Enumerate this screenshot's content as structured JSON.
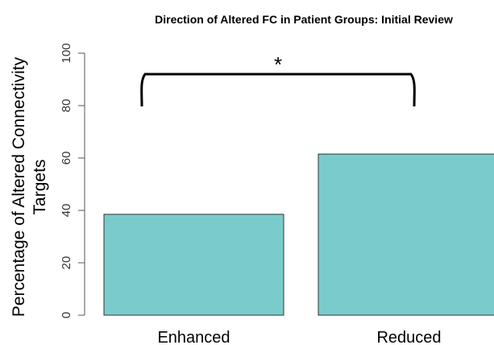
{
  "chart_data": {
    "type": "bar",
    "title": "Direction of Altered FC in Patient Groups: Initial Review",
    "ylabel_lines": [
      "Percentage of Altered Connectivity",
      "Targets"
    ],
    "xlabel": "",
    "categories": [
      "Enhanced",
      "Reduced"
    ],
    "values": [
      38.5,
      61.5
    ],
    "ylim": [
      0,
      100
    ],
    "yticks": [
      0,
      20,
      40,
      60,
      80,
      100
    ],
    "bar_color": "#7ACCCC",
    "bar_edge_color": "#333333",
    "grid": false,
    "significance": {
      "between": [
        "Enhanced",
        "Reduced"
      ],
      "symbol": "*"
    }
  }
}
